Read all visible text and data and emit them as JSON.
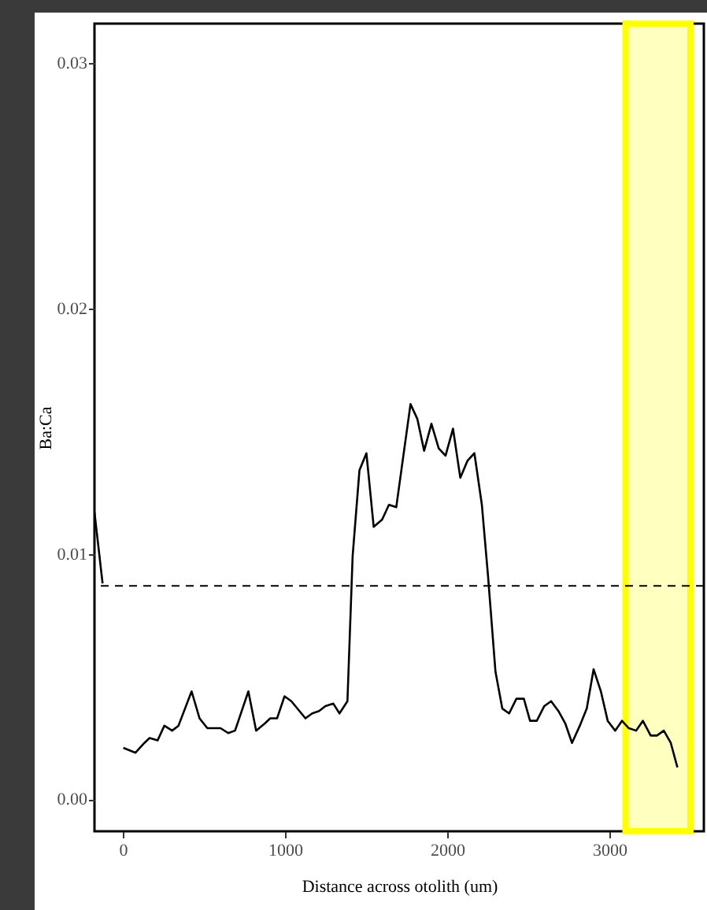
{
  "chart_data": {
    "type": "line",
    "xlabel": "Distance across otolith (um)",
    "ylabel": "Ba:Ca",
    "xlim": [
      -175,
      3583
    ],
    "ylim": [
      -0.0013,
      0.0316
    ],
    "xticks": [
      0,
      1000,
      2000,
      3000
    ],
    "yticks": [
      {
        "value": 0,
        "label": "0.00"
      },
      {
        "value": 0.01,
        "label": "0.01"
      },
      {
        "value": 0.02,
        "label": "0.02"
      },
      {
        "value": 0.03,
        "label": "0.03"
      }
    ],
    "grid": false,
    "line_style": "solid",
    "marker": "none",
    "x": [
      -175,
      -125,
      -100,
      3,
      78,
      133,
      165,
      214,
      256,
      304,
      343,
      424,
      473,
      521,
      602,
      650,
      692,
      774,
      822,
      877,
      909,
      951,
      997,
      1039,
      1126,
      1168,
      1210,
      1249,
      1298,
      1336,
      1385,
      1417,
      1459,
      1502,
      1547,
      1599,
      1641,
      1686,
      1774,
      1816,
      1858,
      1903,
      1948,
      1990,
      2036,
      2081,
      2126,
      2168,
      2214,
      2252,
      2298,
      2340,
      2382,
      2427,
      2473,
      2511,
      2553,
      2599,
      2641,
      2686,
      2728,
      2770,
      2818,
      2861,
      2903,
      2948,
      2990,
      3036,
      3078,
      3120,
      3165,
      3207,
      3255,
      3294,
      3336,
      3379,
      3420
    ],
    "series": [
      {
        "color": "#000000",
        "values": [
          0.0117,
          0.0088,
          null,
          0.0021,
          0.0019,
          0.0023,
          0.0025,
          0.0024,
          0.003,
          0.0028,
          0.003,
          0.0044,
          0.0033,
          0.0029,
          0.0029,
          0.0027,
          0.0028,
          0.0044,
          0.0028,
          0.0031,
          0.0033,
          0.0033,
          0.0042,
          0.004,
          0.0033,
          0.0035,
          0.0036,
          0.0038,
          0.0039,
          0.0035,
          0.004,
          0.0099,
          0.0134,
          0.0141,
          0.0111,
          0.0114,
          0.012,
          0.0119,
          0.0161,
          0.0155,
          0.0142,
          0.0153,
          0.0143,
          0.014,
          0.0151,
          0.0131,
          0.0138,
          0.0141,
          0.012,
          0.0091,
          0.0052,
          0.0037,
          0.0035,
          0.0041,
          0.0041,
          0.0032,
          0.0032,
          0.0038,
          0.004,
          0.0036,
          0.0031,
          0.0023,
          0.003,
          0.0037,
          0.0053,
          0.0044,
          0.0032,
          0.0028,
          0.0032,
          0.0029,
          0.0028,
          0.0032,
          0.0026,
          0.0026,
          0.0028,
          0.0023,
          0.0013
        ]
      }
    ],
    "ref_lines": [
      {
        "axis": "y",
        "value": 0.0087,
        "line_style": "dashed",
        "color": "#000000"
      }
    ],
    "bands": [
      {
        "axis": "x",
        "from": 3100,
        "to": 3500,
        "color": "#ffff00"
      }
    ]
  }
}
